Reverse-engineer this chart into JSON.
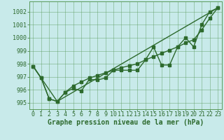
{
  "xlabel": "Graphe pression niveau de la mer (hPa)",
  "background_color": "#c8eaea",
  "grid_color": "#5a9a5a",
  "line_color": "#2d6a2d",
  "xlim": [
    -0.5,
    23.5
  ],
  "ylim": [
    994.5,
    1002.8
  ],
  "yticks": [
    995,
    996,
    997,
    998,
    999,
    1000,
    1001,
    1002
  ],
  "xticks": [
    0,
    1,
    2,
    3,
    4,
    5,
    6,
    7,
    8,
    9,
    10,
    11,
    12,
    13,
    14,
    15,
    16,
    17,
    18,
    19,
    20,
    21,
    22,
    23
  ],
  "series1_x": [
    0,
    1,
    2,
    3,
    4,
    5,
    6,
    7,
    8,
    9,
    10,
    11,
    12,
    13,
    14,
    15,
    16,
    17,
    18,
    19,
    20,
    21,
    22,
    23
  ],
  "series1_y": [
    997.8,
    996.9,
    995.3,
    995.1,
    995.8,
    996.1,
    995.9,
    996.8,
    996.75,
    996.9,
    997.5,
    997.5,
    997.5,
    997.5,
    998.3,
    999.3,
    997.9,
    997.9,
    999.3,
    1000.0,
    999.3,
    1001.0,
    1002.0,
    1002.3
  ],
  "series2_x": [
    0,
    1,
    2,
    3,
    4,
    5,
    6,
    7,
    8,
    9,
    10,
    11,
    12,
    13,
    14,
    15,
    16,
    17,
    18,
    19,
    20,
    21,
    22,
    23
  ],
  "series2_y": [
    997.8,
    996.9,
    995.3,
    995.1,
    995.8,
    996.3,
    996.6,
    996.9,
    997.1,
    997.3,
    997.5,
    997.7,
    997.85,
    998.0,
    998.3,
    998.55,
    998.8,
    999.05,
    999.3,
    999.6,
    999.85,
    1000.6,
    1001.5,
    1002.3
  ],
  "series3_x": [
    0,
    3,
    23
  ],
  "series3_y": [
    997.8,
    995.1,
    1002.3
  ],
  "marker_size": 2.5,
  "line_width": 1.0,
  "font_family": "monospace",
  "xlabel_fontsize": 7,
  "tick_fontsize": 6
}
